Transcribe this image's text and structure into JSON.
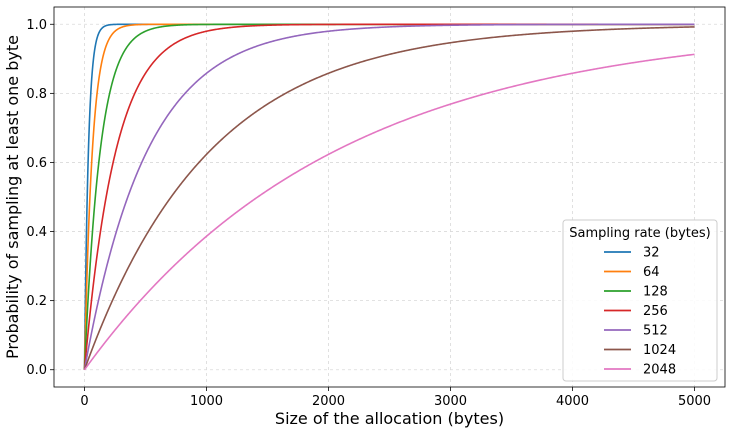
{
  "chart_data": {
    "type": "line",
    "title": "",
    "xlabel": "Size of the allocation (bytes)",
    "ylabel": "Probability of sampling at least one byte",
    "xlim": [
      -250,
      5250
    ],
    "ylim": [
      -0.05,
      1.05
    ],
    "xticks": [
      0,
      1000,
      2000,
      3000,
      4000,
      5000
    ],
    "xtick_labels": [
      "0",
      "1000",
      "2000",
      "3000",
      "4000",
      "5000"
    ],
    "yticks": [
      0.0,
      0.2,
      0.4,
      0.6,
      0.8,
      1.0
    ],
    "ytick_labels": [
      "0.0",
      "0.2",
      "0.4",
      "0.6",
      "0.8",
      "1.0"
    ],
    "grid": true,
    "legend": {
      "title": "Sampling rate (bytes)",
      "placement": "bottom-right"
    },
    "x_range": [
      0,
      5000
    ],
    "function": "1 - exp(-x / rate)",
    "series": [
      {
        "name": "32",
        "rate": 32,
        "color": "#1f77b4"
      },
      {
        "name": "64",
        "rate": 64,
        "color": "#ff7f0e"
      },
      {
        "name": "128",
        "rate": 128,
        "color": "#2ca02c"
      },
      {
        "name": "256",
        "rate": 256,
        "color": "#d62728"
      },
      {
        "name": "512",
        "rate": 512,
        "color": "#9467bd"
      },
      {
        "name": "1024",
        "rate": 1024,
        "color": "#8c564b"
      },
      {
        "name": "2048",
        "rate": 2048,
        "color": "#e377c2"
      }
    ]
  }
}
